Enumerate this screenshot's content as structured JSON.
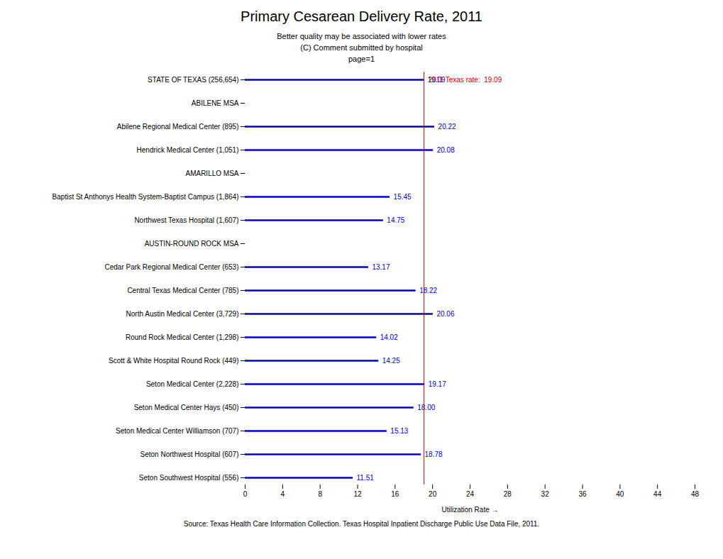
{
  "chart_data": {
    "type": "bar",
    "orientation": "horizontal",
    "title": "Primary Cesarean Delivery Rate, 2011",
    "subtitle": [
      "Better quality may be associated with lower rates",
      "(C) Comment submitted by hospital",
      "page=1"
    ],
    "xlabel": "Utilization Rate",
    "footer": "Source: Texas Health Care Information Collection. Texas Hospital Inpatient Discharge Public Use Data File, 2011.",
    "categories": [
      "STATE OF TEXAS (256,654)",
      "ABILENE MSA",
      "Abilene Regional Medical Center (895)",
      "Hendrick Medical Center (1,051)",
      "AMARILLO MSA",
      "Baptist St Anthonys Health System-Baptist Campus (1,864)",
      "Northwest Texas Hospital (1,607)",
      "AUSTIN-ROUND ROCK MSA",
      "Cedar Park Regional Medical Center (653)",
      "Central Texas Medical Center (785)",
      "North Austin Medical Center (3,729)",
      "Round Rock Medical Center (1,298)",
      "Scott & White Hospital Round Rock (449)",
      "Seton Medical Center (2,228)",
      "Seton Medical Center Hays (450)",
      "Seton Medical Center Williamson (707)",
      "Seton Northwest Hospital (607)",
      "Seton Southwest Hospital (556)"
    ],
    "values": [
      19.09,
      null,
      20.22,
      20.08,
      null,
      15.45,
      14.75,
      null,
      13.17,
      18.22,
      20.06,
      14.02,
      14.25,
      19.17,
      18.0,
      15.13,
      18.78,
      11.51
    ],
    "value_labels": [
      "19.09",
      null,
      "20.22",
      "20.08",
      null,
      "15.45",
      "14.75",
      null,
      "13.17",
      "18.22",
      "20.06",
      "14.02",
      "14.25",
      "19.17",
      "18.00",
      "15.13",
      "18.78",
      "11.51"
    ],
    "color": "#0000CC",
    "data_labels": true,
    "reference_line": {
      "value": 19.09,
      "label": "2011 Texas rate:  19.09",
      "color": "#CC0000"
    },
    "xlim": [
      0,
      48
    ],
    "xticks": [
      0,
      4,
      8,
      12,
      16,
      20,
      24,
      28,
      32,
      36,
      40,
      44,
      48
    ],
    "grid": false
  }
}
